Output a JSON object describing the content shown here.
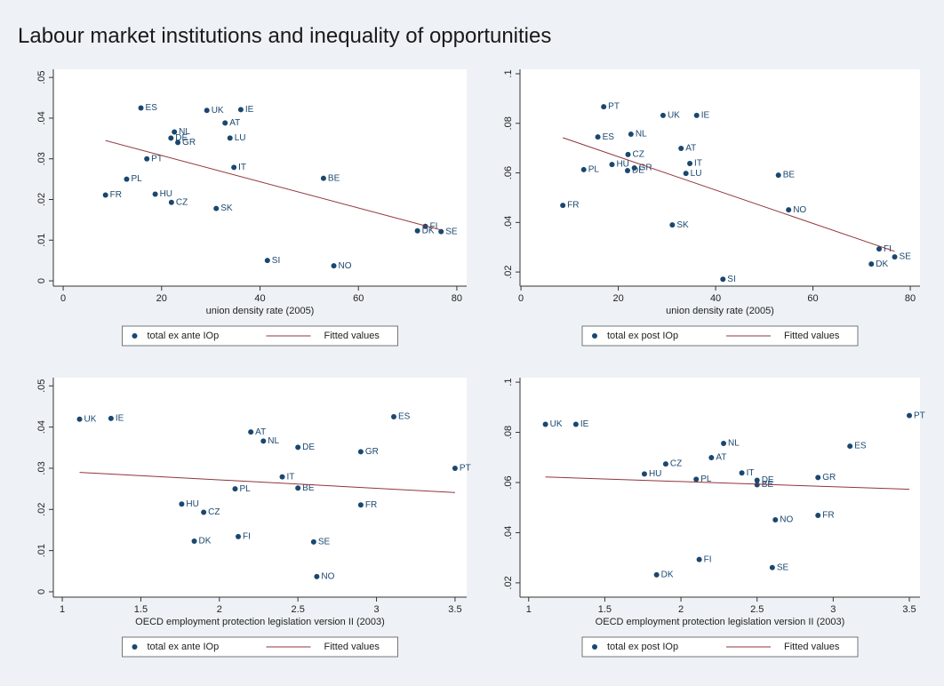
{
  "title": "Labour market institutions and inequality of opportunities",
  "chart_data": [
    {
      "type": "scatter",
      "x_label": "union density rate (2005)",
      "xlim": [
        -2,
        82
      ],
      "ylim": [
        -0.0013,
        0.052
      ],
      "xticks": [
        0,
        20,
        40,
        60,
        80
      ],
      "yticks": [
        0,
        {
          "value": 0.01,
          "label": ".01"
        },
        {
          "value": 0.02,
          "label": ".02"
        },
        {
          "value": 0.03,
          "label": ".03"
        },
        {
          "value": 0.04,
          "label": ".04"
        },
        {
          "value": 0.05,
          "label": ".05"
        }
      ],
      "series": [
        {
          "name": "total ex ante IOp",
          "type": "scatter",
          "color": "#1a476f",
          "point_labels": [
            "ES",
            "UK",
            "IE",
            "AT",
            "NL",
            "DE",
            "LU",
            "GR",
            "PT",
            "IT",
            "PL",
            "BE",
            "HU",
            "FR",
            "CZ",
            "SK",
            "FI",
            "DK",
            "SE",
            "SI",
            "NO"
          ],
          "x": [
            15.8,
            29.2,
            36.1,
            32.9,
            22.6,
            21.9,
            33.9,
            23.3,
            17.0,
            34.7,
            12.9,
            52.9,
            18.7,
            8.6,
            22.0,
            31.1,
            73.6,
            72.0,
            76.8,
            41.5,
            55.0
          ],
          "values": [
            0.0425,
            0.0419,
            0.0421,
            0.0388,
            0.0366,
            0.0351,
            0.0351,
            0.034,
            0.03,
            0.0279,
            0.025,
            0.0252,
            0.0213,
            0.0211,
            0.0193,
            0.0178,
            0.0134,
            0.0123,
            0.0121,
            0.005,
            0.0037
          ]
        },
        {
          "name": "Fitted values",
          "type": "line",
          "color": "#90353b",
          "x": [
            8.6,
            76.8
          ],
          "values": [
            0.0345,
            0.0125
          ]
        }
      ]
    },
    {
      "type": "scatter",
      "x_label": "union density rate (2005)",
      "xlim": [
        -0.2,
        82
      ],
      "ylim": [
        0.0143,
        0.1018
      ],
      "xticks": [
        0,
        20,
        40,
        60,
        80
      ],
      "yticks": [
        {
          "value": 0.02,
          "label": ".02"
        },
        {
          "value": 0.04,
          "label": ".04"
        },
        {
          "value": 0.06,
          "label": ".06"
        },
        {
          "value": 0.08,
          "label": ".08"
        },
        {
          "value": 0.1,
          "label": ".1"
        }
      ],
      "series": [
        {
          "name": "total ex post IOp",
          "type": "scatter",
          "color": "#1a476f",
          "point_labels": [
            "ES",
            "UK",
            "IE",
            "AT",
            "NL",
            "DE",
            "LU",
            "GR",
            "PT",
            "IT",
            "PL",
            "BE",
            "HU",
            "FR",
            "CZ",
            "SK",
            "FI",
            "DK",
            "SE",
            "SI",
            "NO"
          ],
          "x": [
            15.8,
            29.2,
            36.1,
            32.9,
            22.6,
            21.9,
            33.9,
            23.3,
            17.0,
            34.7,
            12.9,
            52.9,
            18.7,
            8.6,
            22.0,
            31.1,
            73.6,
            72.0,
            76.8,
            41.5,
            55.0
          ],
          "values": [
            0.0745,
            0.0832,
            0.0832,
            0.0699,
            0.0756,
            0.0609,
            0.0598,
            0.062,
            0.0867,
            0.0638,
            0.0613,
            0.0591,
            0.0634,
            0.0469,
            0.0674,
            0.039,
            0.0293,
            0.0232,
            0.0261,
            0.0171,
            0.0451
          ]
        },
        {
          "name": "Fitted values",
          "type": "line",
          "color": "#90353b",
          "x": [
            8.6,
            76.8
          ],
          "values": [
            0.0742,
            0.0283
          ]
        }
      ]
    },
    {
      "type": "scatter",
      "x_label": "OECD employment protection legislation version II (2003)",
      "xlim": [
        0.943,
        3.574
      ],
      "ylim": [
        -0.0013,
        0.052
      ],
      "xticks": [
        1,
        1.5,
        2,
        2.5,
        3,
        3.5
      ],
      "yticks": [
        0,
        {
          "value": 0.01,
          "label": ".01"
        },
        {
          "value": 0.02,
          "label": ".02"
        },
        {
          "value": 0.03,
          "label": ".03"
        },
        {
          "value": 0.04,
          "label": ".04"
        },
        {
          "value": 0.05,
          "label": ".05"
        }
      ],
      "series": [
        {
          "name": "total ex ante IOp",
          "type": "scatter",
          "color": "#1a476f",
          "point_labels": [
            "ES",
            "UK",
            "IE",
            "AT",
            "NL",
            "DE",
            "GR",
            "PT",
            "IT",
            "PL",
            "BE",
            "HU",
            "FR",
            "CZ",
            "FI",
            "DK",
            "SE",
            "NO"
          ],
          "x": [
            3.11,
            1.11,
            1.31,
            2.2,
            2.28,
            2.5,
            2.9,
            3.5,
            2.4,
            2.1,
            2.5,
            1.76,
            2.9,
            1.9,
            2.12,
            1.84,
            2.6,
            2.62
          ],
          "values": [
            0.0425,
            0.0419,
            0.0421,
            0.0388,
            0.0366,
            0.0351,
            0.034,
            0.03,
            0.0279,
            0.025,
            0.0252,
            0.0213,
            0.0211,
            0.0193,
            0.0134,
            0.0123,
            0.0121,
            0.0037
          ]
        },
        {
          "name": "Fitted values",
          "type": "line",
          "color": "#90353b",
          "x": [
            1.11,
            3.5
          ],
          "values": [
            0.029,
            0.0241
          ]
        }
      ]
    },
    {
      "type": "scatter",
      "x_label": "OECD employment protection legislation version II (2003)",
      "xlim": [
        0.943,
        3.57
      ],
      "ylim": [
        0.0143,
        0.1018
      ],
      "xticks": [
        1,
        1.5,
        2,
        2.5,
        3,
        3.5
      ],
      "yticks": [
        {
          "value": 0.02,
          "label": ".02"
        },
        {
          "value": 0.04,
          "label": ".04"
        },
        {
          "value": 0.06,
          "label": ".06"
        },
        {
          "value": 0.08,
          "label": ".08"
        },
        {
          "value": 0.1,
          "label": ".1"
        }
      ],
      "series": [
        {
          "name": "total ex post IOp",
          "type": "scatter",
          "color": "#1a476f",
          "point_labels": [
            "ES",
            "UK",
            "IE",
            "AT",
            "NL",
            "DE",
            "GR",
            "PT",
            "IT",
            "PL",
            "BE",
            "HU",
            "FR",
            "CZ",
            "FI",
            "DK",
            "SE",
            "NO"
          ],
          "x": [
            3.11,
            1.11,
            1.31,
            2.2,
            2.28,
            2.5,
            2.9,
            3.5,
            2.4,
            2.1,
            2.5,
            1.76,
            2.9,
            1.9,
            2.12,
            1.84,
            2.6,
            2.62
          ],
          "values": [
            0.0745,
            0.0832,
            0.0832,
            0.0699,
            0.0756,
            0.0609,
            0.062,
            0.0867,
            0.0638,
            0.0613,
            0.0591,
            0.0634,
            0.0469,
            0.0674,
            0.0293,
            0.0232,
            0.0261,
            0.0451
          ]
        },
        {
          "name": "Fitted values",
          "type": "line",
          "color": "#90353b",
          "x": [
            1.11,
            3.5
          ],
          "values": [
            0.0622,
            0.0573
          ]
        }
      ]
    }
  ]
}
